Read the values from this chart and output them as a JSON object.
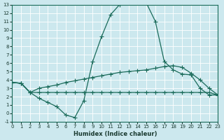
{
  "xlabel": "Humidex (Indice chaleur)",
  "bg_color": "#cce8ee",
  "line_color": "#1a6b5a",
  "grid_color": "#ffffff",
  "xlim": [
    0,
    23
  ],
  "ylim": [
    -1,
    13
  ],
  "xticks": [
    0,
    1,
    2,
    3,
    4,
    5,
    6,
    7,
    8,
    9,
    10,
    11,
    12,
    13,
    14,
    15,
    16,
    17,
    18,
    19,
    20,
    21,
    22,
    23
  ],
  "yticks": [
    -1,
    0,
    1,
    2,
    3,
    4,
    5,
    6,
    7,
    8,
    9,
    10,
    11,
    12,
    13
  ],
  "line1_x": [
    0,
    1,
    2,
    3,
    4,
    5,
    6,
    7,
    8,
    9,
    10,
    11,
    12,
    13,
    14,
    15,
    16,
    17,
    18,
    19,
    20,
    21,
    22,
    23
  ],
  "line1_y": [
    3.7,
    3.6,
    2.5,
    1.8,
    1.3,
    0.8,
    -0.2,
    -0.5,
    1.5,
    6.2,
    9.2,
    11.8,
    13.0,
    13.3,
    13.3,
    13.2,
    11.0,
    6.2,
    5.2,
    4.7,
    4.6,
    3.0,
    2.2,
    2.2
  ],
  "line2_x": [
    0,
    1,
    2,
    3,
    4,
    5,
    6,
    7,
    8,
    9,
    10,
    11,
    12,
    13,
    14,
    15,
    16,
    17,
    18,
    19,
    20,
    21,
    22,
    23
  ],
  "line2_y": [
    3.7,
    3.6,
    2.5,
    2.5,
    2.5,
    2.5,
    2.5,
    2.5,
    2.5,
    2.5,
    2.5,
    2.5,
    2.5,
    2.5,
    2.5,
    2.5,
    2.5,
    2.5,
    2.5,
    2.5,
    2.5,
    2.5,
    2.5,
    2.2
  ],
  "line3_x": [
    0,
    1,
    2,
    3,
    4,
    5,
    6,
    7,
    8,
    9,
    10,
    11,
    12,
    13,
    14,
    15,
    16,
    17,
    18,
    19,
    20,
    21,
    22,
    23
  ],
  "line3_y": [
    3.7,
    3.6,
    2.5,
    3.0,
    3.2,
    3.4,
    3.7,
    3.9,
    4.1,
    4.3,
    4.5,
    4.7,
    4.9,
    5.0,
    5.1,
    5.2,
    5.4,
    5.6,
    5.7,
    5.5,
    4.8,
    4.0,
    3.0,
    2.2
  ]
}
